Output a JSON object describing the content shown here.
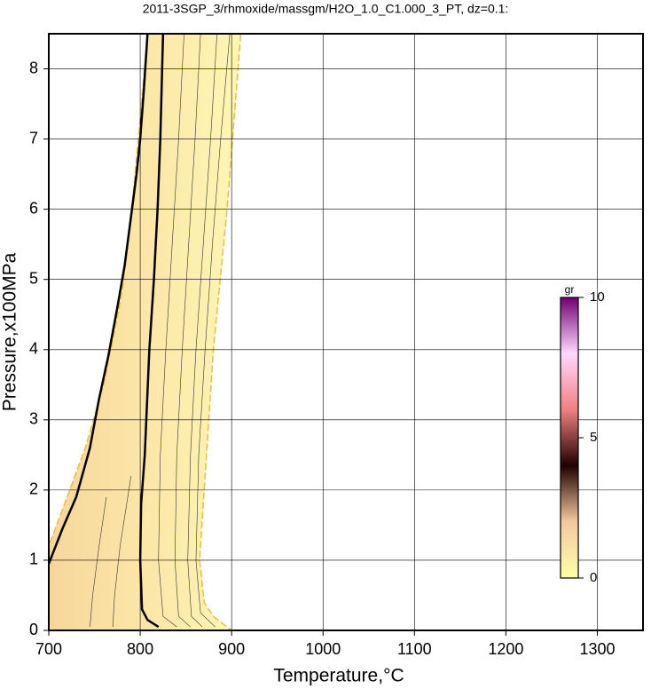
{
  "chart_data": {
    "type": "contour",
    "title": "2011-3SGP_3/rhmoxide/massgm/H2O_1.0_C1.000_3_PT, dz=0.1:",
    "x_label": "Temperature,°C",
    "y_label": "Pressure,x100MPa",
    "xlim": [
      700,
      1350
    ],
    "ylim": [
      0,
      8.5
    ],
    "xticks": [
      700,
      800,
      900,
      1000,
      1100,
      1200,
      1300
    ],
    "yticks": [
      0,
      1,
      2,
      3,
      4,
      5,
      6,
      7,
      8
    ],
    "grid": true,
    "field": {
      "color_low": "#f7d69c",
      "color_high": "#fff7b4",
      "x": [
        700,
        700,
        720,
        740,
        760,
        780,
        790,
        800,
        808,
        910,
        895,
        880,
        870,
        865,
        870,
        880,
        900
      ],
      "y": [
        0,
        1.2,
        1.9,
        2.6,
        3.5,
        4.8,
        5.9,
        7.3,
        8.5,
        8.5,
        6,
        4,
        2,
        1,
        0.4,
        0.2,
        0
      ]
    },
    "series": [
      {
        "width": 2.5,
        "color": "#000000",
        "x": [
          700,
          715,
          730,
          745,
          755,
          765,
          775,
          783,
          790,
          796,
          800,
          804,
          808
        ],
        "y": [
          0.95,
          1.45,
          1.9,
          2.6,
          3.3,
          3.9,
          4.6,
          5.2,
          5.9,
          6.5,
          7,
          7.7,
          8.5
        ]
      },
      {
        "width": 2.5,
        "color": "#000000",
        "x": [
          820,
          808,
          802,
          800,
          801,
          805,
          810,
          815,
          819,
          822,
          825
        ],
        "y": [
          0.05,
          0.15,
          0.3,
          1,
          1.8,
          2.5,
          4,
          5,
          6,
          7,
          8.5
        ]
      },
      {
        "width": 0.6,
        "color": "#333333",
        "x": [
          840,
          825,
          820,
          822,
          828,
          835,
          842,
          848
        ],
        "y": [
          0.05,
          0.2,
          1,
          2.5,
          4,
          5.5,
          7,
          8.5
        ]
      },
      {
        "width": 0.6,
        "color": "#333333",
        "x": [
          855,
          842,
          838,
          840,
          846,
          853,
          860,
          866
        ],
        "y": [
          0.05,
          0.2,
          1,
          2.5,
          4,
          5.5,
          7,
          8.5
        ]
      },
      {
        "width": 0.6,
        "color": "#333333",
        "x": [
          868,
          856,
          852,
          855,
          861,
          869,
          877,
          884
        ],
        "y": [
          0.05,
          0.2,
          1,
          2.5,
          4,
          5.5,
          7,
          8.5
        ]
      },
      {
        "width": 0.6,
        "color": "#333333",
        "x": [
          882,
          866,
          861,
          864,
          871,
          879,
          888,
          898
        ],
        "y": [
          0.05,
          0.25,
          1,
          2.5,
          4,
          5.5,
          7,
          8.5
        ]
      },
      {
        "width": 0.6,
        "color": "#333333",
        "x": [
          770,
          772,
          778,
          790
        ],
        "y": [
          0.05,
          0.5,
          1.2,
          2.2
        ]
      },
      {
        "width": 0.6,
        "color": "#333333",
        "x": [
          745,
          748,
          755,
          763
        ],
        "y": [
          0.05,
          0.5,
          1.2,
          1.9
        ]
      }
    ],
    "colorbar": {
      "label": "gr",
      "lim": [
        0,
        10
      ],
      "ticks": [
        0,
        5,
        10
      ],
      "colors": [
        "#ffffa8",
        "#f4c9a0",
        "#200000",
        "#f08080",
        "#ffd8ff",
        "#700070"
      ]
    }
  }
}
